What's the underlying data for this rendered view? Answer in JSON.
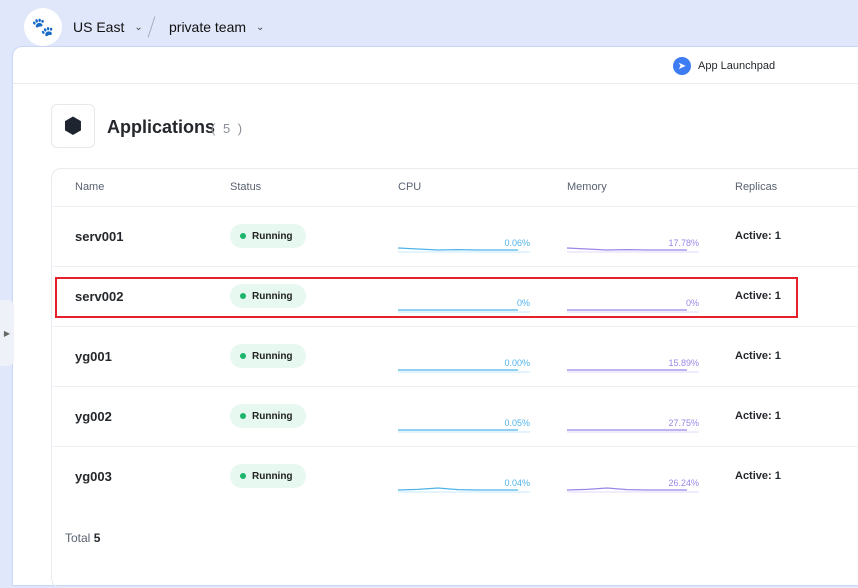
{
  "topbar": {
    "region": "US East",
    "team": "private team"
  },
  "launchpad": "App Launchpad",
  "header": {
    "title": "Applications",
    "count": "( 5 )"
  },
  "columns": [
    "Name",
    "Status",
    "CPU",
    "Memory",
    "Replicas"
  ],
  "rows": [
    {
      "name": "serv001",
      "status": "Running",
      "cpu": "0.06%",
      "memory": "17.78%",
      "replicas": "Active: 1"
    },
    {
      "name": "serv002",
      "status": "Running",
      "cpu": "0%",
      "memory": "0%",
      "replicas": "Active: 1"
    },
    {
      "name": "yg001",
      "status": "Running",
      "cpu": "0.00%",
      "memory": "15.89%",
      "replicas": "Active: 1"
    },
    {
      "name": "yg002",
      "status": "Running",
      "cpu": "0.05%",
      "memory": "27.75%",
      "replicas": "Active: 1"
    },
    {
      "name": "yg003",
      "status": "Running",
      "cpu": "0.04%",
      "memory": "26.24%",
      "replicas": "Active: 1"
    }
  ],
  "footer": {
    "label": "Total",
    "value": "5"
  },
  "colors": {
    "cpu": "#4fb3e8",
    "memory": "#9b86e6",
    "running": "#1cb56b",
    "highlight": "#e5202a"
  }
}
